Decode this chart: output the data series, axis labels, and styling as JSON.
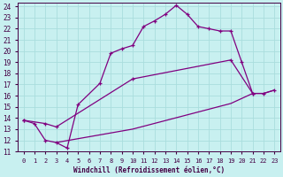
{
  "xlabel": "Windchill (Refroidissement éolien,°C)",
  "bg_color": "#c8f0f0",
  "line_color": "#800080",
  "grid_color": "#aadddd",
  "xlim": [
    -0.5,
    23.5
  ],
  "ylim": [
    11,
    24.3
  ],
  "xticks": [
    0,
    1,
    2,
    3,
    4,
    5,
    6,
    7,
    8,
    9,
    10,
    11,
    12,
    13,
    14,
    15,
    16,
    17,
    18,
    19,
    20,
    21,
    22,
    23
  ],
  "yticks": [
    11,
    12,
    13,
    14,
    15,
    16,
    17,
    18,
    19,
    20,
    21,
    22,
    23,
    24
  ],
  "line1_x": [
    0,
    1,
    2,
    3,
    4,
    5,
    7,
    8,
    9,
    10,
    11,
    12,
    13,
    14,
    15,
    16,
    17,
    18,
    19,
    20,
    21
  ],
  "line1_y": [
    13.8,
    13.5,
    12.0,
    11.8,
    11.3,
    15.2,
    17.1,
    19.8,
    20.2,
    20.5,
    22.2,
    22.7,
    23.3,
    24.1,
    23.3,
    22.2,
    22.0,
    21.8,
    21.8,
    19.0,
    16.2
  ],
  "line2_x": [
    0,
    2,
    3,
    10,
    19,
    21,
    22,
    23
  ],
  "line2_y": [
    13.8,
    13.5,
    13.2,
    17.5,
    19.2,
    16.2,
    16.2,
    16.5
  ],
  "line3_x": [
    3,
    10,
    19,
    21,
    22,
    23
  ],
  "line3_y": [
    11.8,
    13.0,
    15.3,
    16.2,
    16.2,
    16.5
  ]
}
